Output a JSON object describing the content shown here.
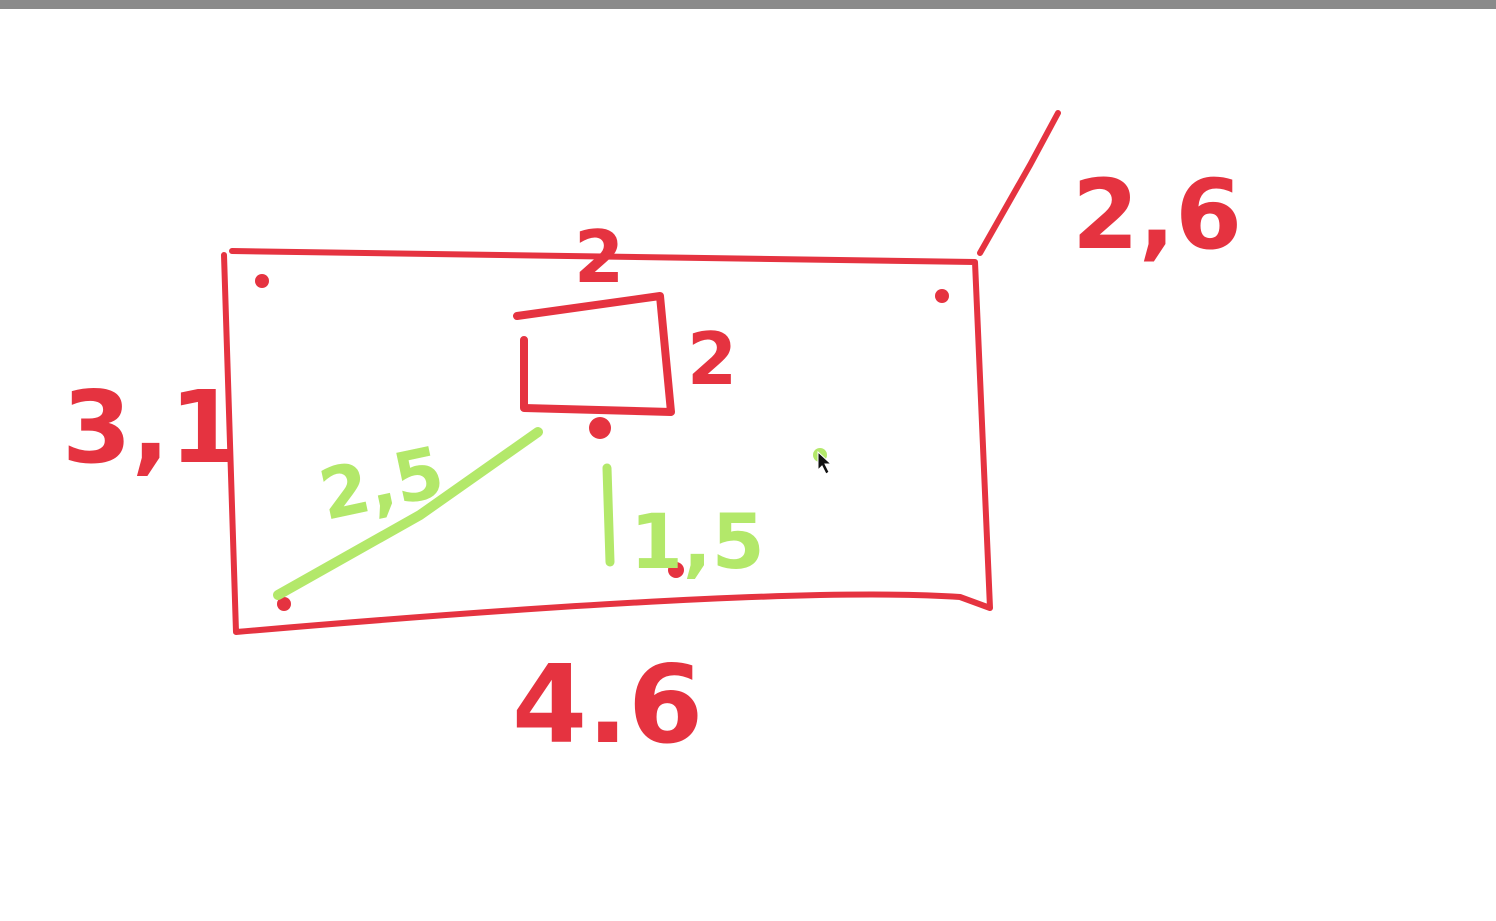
{
  "colors": {
    "background": "#ffffff",
    "title_bar": "#8a8a8a",
    "ink_red": "#e53340",
    "ink_green": "#b3e86a"
  },
  "labels": {
    "top_right": "2,6",
    "left": "3,1",
    "bottom": "4.6",
    "small_rect_top": "2",
    "small_rect_right": "2",
    "diagonal": "2,5",
    "vertical": "1,5"
  },
  "icons": {
    "cursor": "mouse-pointer-icon"
  }
}
